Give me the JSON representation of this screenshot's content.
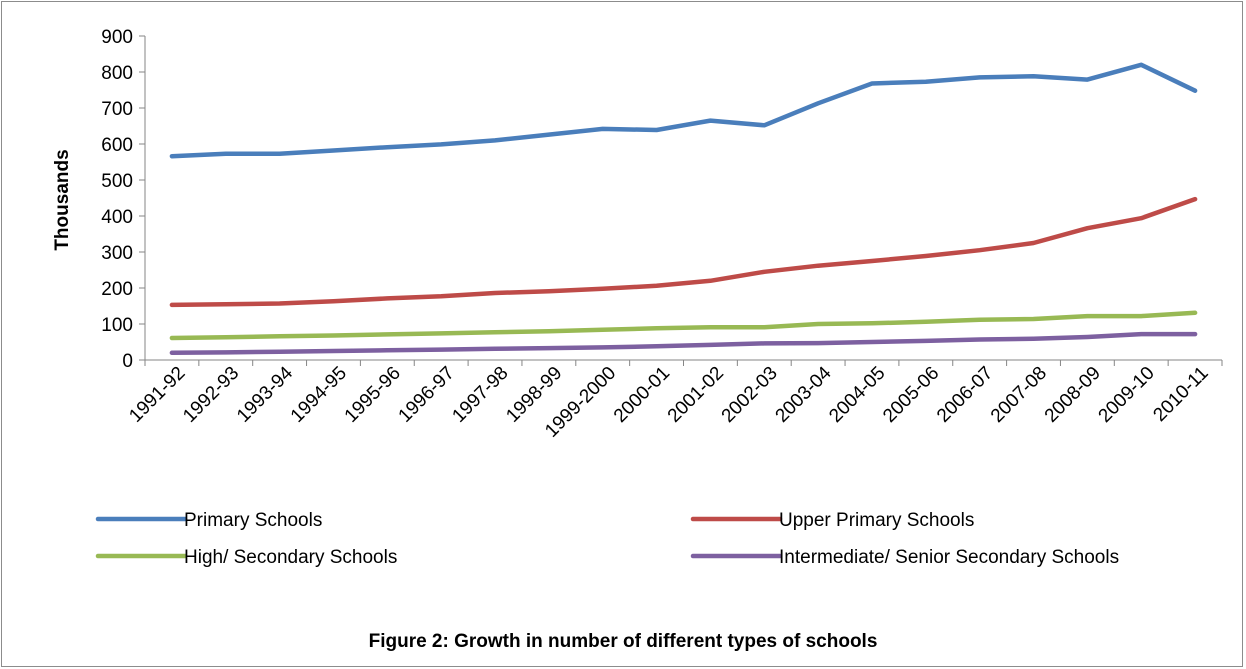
{
  "chart_data": {
    "type": "line",
    "title": "Figure 2: Growth in number of different types of schools",
    "ylabel": "Thousands",
    "xlabel": "",
    "ylim": [
      0,
      900
    ],
    "yticks": [
      "0",
      "100",
      "200",
      "300",
      "400",
      "500",
      "600",
      "700",
      "800",
      "900"
    ],
    "grid": false,
    "legend_position": "bottom",
    "categories": [
      "1991-92",
      "1992-93",
      "1993-94",
      "1994-95",
      "1995-96",
      "1996-97",
      "1997-98",
      "1998-99",
      "1999-2000",
      "2000-01",
      "2001-02",
      "2002-03",
      "2003-04",
      "2004-05",
      "2005-06",
      "2006-07",
      "2007-08",
      "2008-09",
      "2009-10",
      "2010-11"
    ],
    "series": [
      {
        "name": "Primary Schools",
        "color": "#4a7ebb",
        "values": [
          566,
          573,
          573,
          582,
          591,
          599,
          610,
          626,
          642,
          639,
          665,
          652,
          713,
          768,
          773,
          785,
          788,
          779,
          820,
          748
        ]
      },
      {
        "name": "Upper Primary Schools",
        "color": "#be4b48",
        "values": [
          153,
          155,
          157,
          163,
          171,
          177,
          186,
          191,
          198,
          206,
          220,
          245,
          262,
          275,
          289,
          305,
          325,
          366,
          394,
          447
        ]
      },
      {
        "name": "High/ Secondary Schools",
        "color": "#98b954",
        "values": [
          61,
          63,
          66,
          68,
          71,
          74,
          77,
          80,
          84,
          88,
          91,
          91,
          100,
          102,
          106,
          112,
          114,
          122,
          122,
          131
        ]
      },
      {
        "name": "Intermediate/ Senior Secondary Schools",
        "color": "#7d60a0",
        "values": [
          20,
          21,
          23,
          25,
          27,
          29,
          31,
          33,
          35,
          38,
          42,
          46,
          47,
          50,
          53,
          57,
          59,
          64,
          72,
          72
        ]
      }
    ]
  }
}
